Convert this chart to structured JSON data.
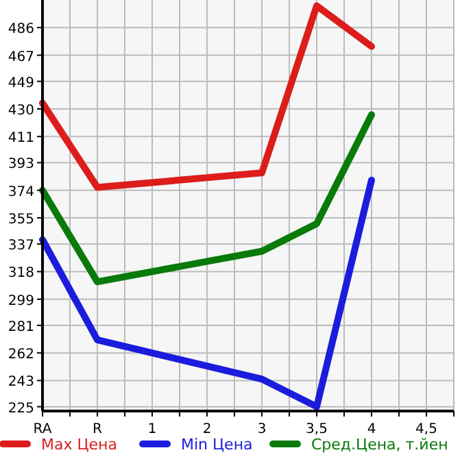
{
  "chart_data": {
    "type": "line",
    "categories": [
      "RA",
      "R",
      "1",
      "2",
      "3",
      "3,5",
      "4",
      "4,5"
    ],
    "series": [
      {
        "name": "Max Цена",
        "color": "#dd1c1c",
        "values": [
          434,
          376,
          null,
          null,
          386,
          501,
          473,
          null
        ]
      },
      {
        "name": "Min Цена",
        "color": "#1c1cdd",
        "values": [
          340,
          271,
          null,
          null,
          244,
          225,
          381,
          null
        ]
      },
      {
        "name": "Сред.Цена, т.йен",
        "color": "#0a7a0a",
        "values": [
          374,
          311,
          null,
          null,
          332,
          351,
          426,
          null
        ]
      }
    ],
    "ylim": [
      222,
      505
    ],
    "yticks": [
      225,
      243,
      262,
      281,
      299,
      318,
      337,
      355,
      374,
      393,
      411,
      430,
      449,
      467,
      486
    ],
    "grid": true,
    "legend": "bottom",
    "marker": "none",
    "line_style": "solid"
  }
}
